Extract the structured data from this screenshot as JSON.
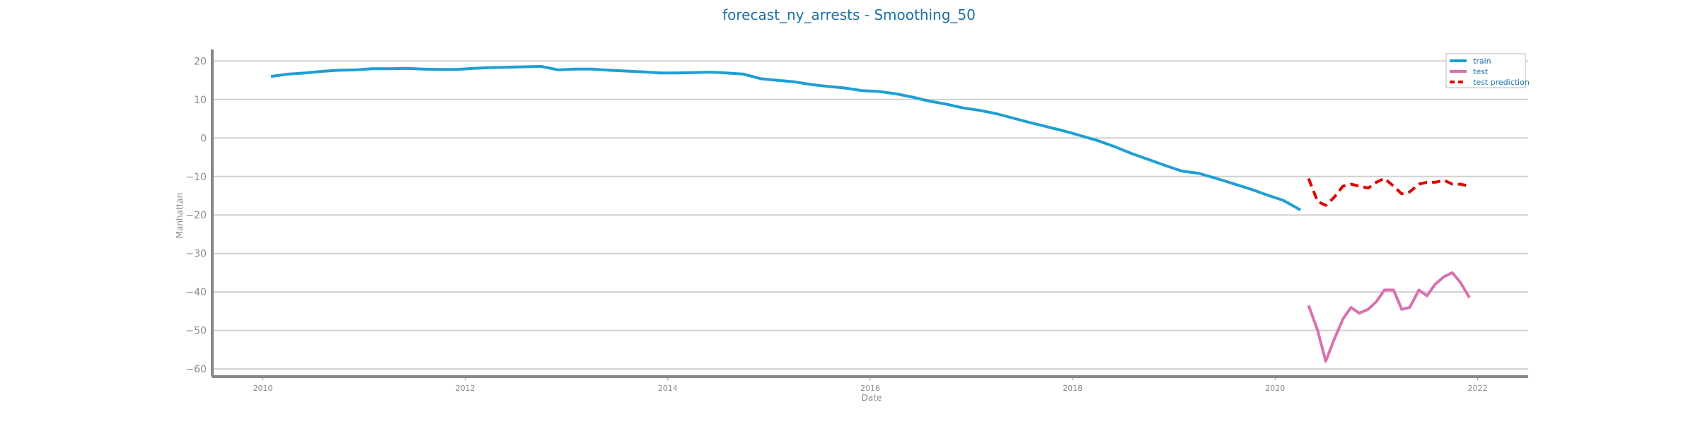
{
  "chart_data": {
    "type": "line",
    "title": "forecast_ny_arrests - Smoothing_50",
    "xlabel": "Date",
    "ylabel": "Manhattan",
    "xlim": [
      2009.5,
      2022.5
    ],
    "ylim": [
      -62,
      23
    ],
    "grid": "horizontal",
    "legend_position": "top-right",
    "xticks": [
      2010,
      2012,
      2014,
      2016,
      2018,
      2020,
      2022
    ],
    "yticks": [
      20,
      10,
      0,
      -10,
      -20,
      -30,
      -40,
      -50,
      -60
    ],
    "series": [
      {
        "name": "train",
        "color": "#1f9fd4",
        "dash": "solid",
        "x": [
          2010.08,
          2010.25,
          2010.42,
          2010.58,
          2010.75,
          2010.92,
          2011.08,
          2011.25,
          2011.42,
          2011.58,
          2011.75,
          2011.92,
          2012.08,
          2012.25,
          2012.42,
          2012.58,
          2012.75,
          2012.92,
          2013.08,
          2013.25,
          2013.42,
          2013.58,
          2013.75,
          2013.92,
          2014.08,
          2014.25,
          2014.42,
          2014.58,
          2014.75,
          2014.92,
          2015.08,
          2015.25,
          2015.42,
          2015.58,
          2015.75,
          2015.92,
          2016.08,
          2016.25,
          2016.42,
          2016.58,
          2016.75,
          2016.92,
          2017.08,
          2017.25,
          2017.42,
          2017.58,
          2017.75,
          2017.92,
          2018.08,
          2018.25,
          2018.42,
          2018.58,
          2018.75,
          2018.92,
          2019.08,
          2019.25,
          2019.42,
          2019.58,
          2019.75,
          2019.92,
          2020.08,
          2020.25
        ],
        "values": [
          16.0,
          16.6,
          16.9,
          17.3,
          17.6,
          17.7,
          18.0,
          18.0,
          18.1,
          17.9,
          17.8,
          17.8,
          18.1,
          18.3,
          18.4,
          18.5,
          18.6,
          17.7,
          17.9,
          17.9,
          17.6,
          17.4,
          17.2,
          16.9,
          16.9,
          17.0,
          17.1,
          16.9,
          16.6,
          15.4,
          15.0,
          14.6,
          13.9,
          13.4,
          13.0,
          12.3,
          12.1,
          11.5,
          10.6,
          9.6,
          8.8,
          7.8,
          7.2,
          6.3,
          5.1,
          4.0,
          2.9,
          1.8,
          0.6,
          -0.7,
          -2.3,
          -4.0,
          -5.6,
          -7.2,
          -8.6,
          -9.2,
          -10.5,
          -11.8,
          -13.2,
          -14.8,
          -16.2,
          -18.7
        ]
      },
      {
        "name": "test",
        "color": "#d970b0",
        "dash": "solid",
        "x": [
          2020.33,
          2020.42,
          2020.5,
          2020.58,
          2020.67,
          2020.75,
          2020.83,
          2020.92,
          2021.0,
          2021.08,
          2021.17,
          2021.25,
          2021.33,
          2021.42,
          2021.5,
          2021.58,
          2021.67,
          2021.75,
          2021.83,
          2021.92
        ],
        "values": [
          -43.5,
          -50.0,
          -58.0,
          -52.5,
          -47.0,
          -44.0,
          -45.5,
          -44.5,
          -42.5,
          -39.5,
          -39.5,
          -44.5,
          -44.0,
          -39.5,
          -41.0,
          -38.0,
          -36.0,
          -35.0,
          -37.5,
          -41.5
        ]
      },
      {
        "name": "test prediction",
        "color": "#e00000",
        "dash": "dashed",
        "x": [
          2020.33,
          2020.42,
          2020.5,
          2020.58,
          2020.67,
          2020.75,
          2020.83,
          2020.92,
          2021.0,
          2021.08,
          2021.17,
          2021.25,
          2021.33,
          2021.42,
          2021.5,
          2021.58,
          2021.67,
          2021.75,
          2021.83,
          2021.92
        ],
        "values": [
          -10.5,
          -16.5,
          -17.5,
          -15.5,
          -12.5,
          -12.0,
          -12.5,
          -13.0,
          -11.5,
          -10.5,
          -12.5,
          -14.5,
          -14.0,
          -12.0,
          -11.5,
          -11.5,
          -11.0,
          -12.0,
          -12.0,
          -12.5
        ]
      }
    ]
  }
}
